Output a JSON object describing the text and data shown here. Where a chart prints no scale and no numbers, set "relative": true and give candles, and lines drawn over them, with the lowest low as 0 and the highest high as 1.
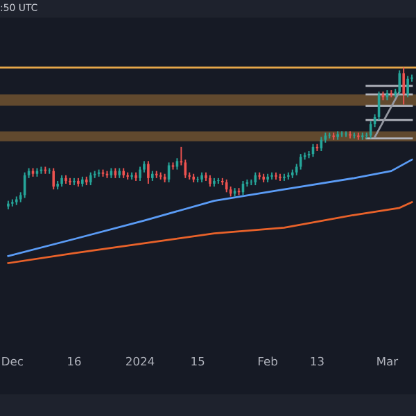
{
  "chart_data": {
    "type": "candlestick",
    "relative": true,
    "annotations": [
      ":50 UTC"
    ],
    "xlim": [
      "2023-11-28",
      "2024-03-08"
    ],
    "xticks": [
      {
        "value": "2023-12-01",
        "label": "Dec"
      },
      {
        "value": "2023-12-16",
        "label": "16"
      },
      {
        "value": "2024-01-01",
        "label": "2024"
      },
      {
        "value": "2024-01-15",
        "label": "15"
      },
      {
        "value": "2024-02-01",
        "label": "Feb"
      },
      {
        "value": "2024-02-13",
        "label": "13"
      },
      {
        "value": "2024-03-01",
        "label": "Mar"
      }
    ],
    "grid": false,
    "x": [
      "2023-11-30",
      "2023-12-01",
      "2023-12-02",
      "2023-12-03",
      "2023-12-04",
      "2023-12-05",
      "2023-12-06",
      "2023-12-07",
      "2023-12-08",
      "2023-12-09",
      "2023-12-10",
      "2023-12-11",
      "2023-12-12",
      "2023-12-13",
      "2023-12-14",
      "2023-12-15",
      "2023-12-16",
      "2023-12-17",
      "2023-12-18",
      "2023-12-19",
      "2023-12-20",
      "2023-12-21",
      "2023-12-22",
      "2023-12-23",
      "2023-12-24",
      "2023-12-25",
      "2023-12-26",
      "2023-12-27",
      "2023-12-28",
      "2023-12-29",
      "2023-12-30",
      "2023-12-31",
      "2024-01-01",
      "2024-01-02",
      "2024-01-03",
      "2024-01-04",
      "2024-01-05",
      "2024-01-06",
      "2024-01-07",
      "2024-01-08",
      "2024-01-09",
      "2024-01-10",
      "2024-01-11",
      "2024-01-12",
      "2024-01-13",
      "2024-01-14",
      "2024-01-15",
      "2024-01-16",
      "2024-01-17",
      "2024-01-18",
      "2024-01-19",
      "2024-01-20",
      "2024-01-21",
      "2024-01-22",
      "2024-01-23",
      "2024-01-24",
      "2024-01-25",
      "2024-01-26",
      "2024-01-27",
      "2024-01-28",
      "2024-01-29",
      "2024-01-30",
      "2024-01-31",
      "2024-02-01",
      "2024-02-02",
      "2024-02-03",
      "2024-02-04",
      "2024-02-05",
      "2024-02-06",
      "2024-02-07",
      "2024-02-08",
      "2024-02-09",
      "2024-02-10",
      "2024-02-11",
      "2024-02-12",
      "2024-02-13",
      "2024-02-14",
      "2024-02-15",
      "2024-02-16",
      "2024-02-17",
      "2024-02-18",
      "2024-02-19",
      "2024-02-20",
      "2024-02-21",
      "2024-02-22",
      "2024-02-23",
      "2024-02-24",
      "2024-02-25",
      "2024-02-26",
      "2024-02-27",
      "2024-02-28",
      "2024-02-29",
      "2024-03-01",
      "2024-03-02",
      "2024-03-03",
      "2024-03-04",
      "2024-03-05",
      "2024-03-06",
      "2024-03-07"
    ],
    "ohlc": [
      [
        0.02,
        0.06,
        0.0,
        0.04
      ],
      [
        0.04,
        0.07,
        0.02,
        0.05
      ],
      [
        0.05,
        0.09,
        0.03,
        0.07
      ],
      [
        0.07,
        0.12,
        0.05,
        0.1
      ],
      [
        0.1,
        0.26,
        0.08,
        0.24
      ],
      [
        0.24,
        0.29,
        0.22,
        0.27
      ],
      [
        0.27,
        0.29,
        0.23,
        0.25
      ],
      [
        0.25,
        0.29,
        0.23,
        0.27
      ],
      [
        0.27,
        0.3,
        0.25,
        0.28
      ],
      [
        0.28,
        0.3,
        0.25,
        0.27
      ],
      [
        0.27,
        0.29,
        0.25,
        0.27
      ],
      [
        0.27,
        0.29,
        0.14,
        0.16
      ],
      [
        0.16,
        0.2,
        0.14,
        0.18
      ],
      [
        0.18,
        0.24,
        0.16,
        0.22
      ],
      [
        0.22,
        0.24,
        0.18,
        0.2
      ],
      [
        0.2,
        0.22,
        0.17,
        0.19
      ],
      [
        0.19,
        0.22,
        0.17,
        0.2
      ],
      [
        0.2,
        0.22,
        0.16,
        0.18
      ],
      [
        0.18,
        0.23,
        0.16,
        0.21
      ],
      [
        0.21,
        0.23,
        0.17,
        0.19
      ],
      [
        0.19,
        0.26,
        0.17,
        0.24
      ],
      [
        0.24,
        0.27,
        0.22,
        0.25
      ],
      [
        0.25,
        0.28,
        0.23,
        0.26
      ],
      [
        0.26,
        0.28,
        0.23,
        0.25
      ],
      [
        0.25,
        0.27,
        0.22,
        0.24
      ],
      [
        0.24,
        0.29,
        0.22,
        0.27
      ],
      [
        0.27,
        0.29,
        0.22,
        0.24
      ],
      [
        0.24,
        0.29,
        0.22,
        0.27
      ],
      [
        0.27,
        0.29,
        0.22,
        0.24
      ],
      [
        0.24,
        0.26,
        0.21,
        0.23
      ],
      [
        0.23,
        0.26,
        0.21,
        0.24
      ],
      [
        0.24,
        0.26,
        0.2,
        0.22
      ],
      [
        0.22,
        0.3,
        0.2,
        0.28
      ],
      [
        0.28,
        0.34,
        0.26,
        0.32
      ],
      [
        0.32,
        0.34,
        0.18,
        0.22
      ],
      [
        0.22,
        0.27,
        0.2,
        0.25
      ],
      [
        0.25,
        0.27,
        0.22,
        0.24
      ],
      [
        0.24,
        0.26,
        0.21,
        0.23
      ],
      [
        0.23,
        0.25,
        0.19,
        0.21
      ],
      [
        0.21,
        0.33,
        0.19,
        0.31
      ],
      [
        0.31,
        0.33,
        0.28,
        0.3
      ],
      [
        0.3,
        0.36,
        0.28,
        0.34
      ],
      [
        0.34,
        0.44,
        0.31,
        0.33
      ],
      [
        0.33,
        0.35,
        0.22,
        0.24
      ],
      [
        0.24,
        0.26,
        0.21,
        0.23
      ],
      [
        0.23,
        0.25,
        0.19,
        0.21
      ],
      [
        0.21,
        0.23,
        0.19,
        0.21
      ],
      [
        0.21,
        0.26,
        0.19,
        0.24
      ],
      [
        0.24,
        0.26,
        0.2,
        0.22
      ],
      [
        0.22,
        0.24,
        0.16,
        0.18
      ],
      [
        0.18,
        0.22,
        0.16,
        0.2
      ],
      [
        0.2,
        0.22,
        0.18,
        0.2
      ],
      [
        0.2,
        0.22,
        0.17,
        0.19
      ],
      [
        0.19,
        0.21,
        0.12,
        0.14
      ],
      [
        0.14,
        0.16,
        0.09,
        0.11
      ],
      [
        0.11,
        0.15,
        0.09,
        0.13
      ],
      [
        0.13,
        0.15,
        0.1,
        0.12
      ],
      [
        0.12,
        0.2,
        0.1,
        0.18
      ],
      [
        0.18,
        0.21,
        0.16,
        0.19
      ],
      [
        0.19,
        0.21,
        0.17,
        0.19
      ],
      [
        0.19,
        0.26,
        0.17,
        0.24
      ],
      [
        0.24,
        0.26,
        0.21,
        0.23
      ],
      [
        0.23,
        0.25,
        0.19,
        0.21
      ],
      [
        0.21,
        0.25,
        0.19,
        0.23
      ],
      [
        0.23,
        0.26,
        0.21,
        0.24
      ],
      [
        0.24,
        0.26,
        0.21,
        0.23
      ],
      [
        0.23,
        0.25,
        0.2,
        0.22
      ],
      [
        0.22,
        0.25,
        0.2,
        0.23
      ],
      [
        0.23,
        0.26,
        0.21,
        0.24
      ],
      [
        0.24,
        0.28,
        0.22,
        0.26
      ],
      [
        0.26,
        0.32,
        0.24,
        0.3
      ],
      [
        0.3,
        0.39,
        0.28,
        0.37
      ],
      [
        0.37,
        0.4,
        0.35,
        0.38
      ],
      [
        0.38,
        0.41,
        0.36,
        0.39
      ],
      [
        0.39,
        0.46,
        0.37,
        0.44
      ],
      [
        0.44,
        0.46,
        0.41,
        0.43
      ],
      [
        0.43,
        0.51,
        0.41,
        0.49
      ],
      [
        0.49,
        0.54,
        0.47,
        0.52
      ],
      [
        0.52,
        0.54,
        0.5,
        0.52
      ],
      [
        0.52,
        0.54,
        0.49,
        0.51
      ],
      [
        0.51,
        0.55,
        0.49,
        0.53
      ],
      [
        0.53,
        0.55,
        0.51,
        0.53
      ],
      [
        0.53,
        0.55,
        0.51,
        0.53
      ],
      [
        0.53,
        0.55,
        0.5,
        0.52
      ],
      [
        0.52,
        0.54,
        0.5,
        0.52
      ],
      [
        0.52,
        0.54,
        0.49,
        0.51
      ],
      [
        0.51,
        0.54,
        0.49,
        0.52
      ],
      [
        0.52,
        0.54,
        0.5,
        0.52
      ],
      [
        0.52,
        0.62,
        0.5,
        0.6
      ],
      [
        0.6,
        0.67,
        0.58,
        0.65
      ],
      [
        0.65,
        0.83,
        0.63,
        0.81
      ],
      [
        0.81,
        0.83,
        0.77,
        0.79
      ],
      [
        0.79,
        0.84,
        0.77,
        0.82
      ],
      [
        0.82,
        0.84,
        0.79,
        0.81
      ],
      [
        0.81,
        0.85,
        0.79,
        0.83
      ],
      [
        0.83,
        0.98,
        0.81,
        0.96
      ],
      [
        0.96,
        1.0,
        0.74,
        0.81
      ],
      [
        0.81,
        0.94,
        0.79,
        0.92
      ],
      [
        0.92,
        0.95,
        0.9,
        0.93
      ]
    ],
    "series": [
      {
        "type": "line",
        "color": "#5b9cf6",
        "x": [
          "2023-11-30",
          "2023-12-16",
          "2024-01-02",
          "2024-01-19",
          "2024-02-05",
          "2024-02-22",
          "2024-03-02",
          "2024-03-07"
        ],
        "values": [
          -0.33,
          -0.21,
          -0.08,
          0.06,
          0.14,
          0.22,
          0.27,
          0.35
        ]
      },
      {
        "type": "line",
        "color": "#e9622a",
        "x": [
          "2023-11-30",
          "2023-12-16",
          "2024-01-02",
          "2024-01-19",
          "2024-02-05",
          "2024-02-22",
          "2024-03-04",
          "2024-03-07"
        ],
        "values": [
          -0.38,
          -0.31,
          -0.24,
          -0.17,
          -0.13,
          -0.04,
          0.01,
          0.05
        ]
      },
      {
        "type": "line",
        "color": "#b2b5be",
        "x": [
          "2024-02-25",
          "2024-03-07"
        ],
        "values": [
          0.87,
          0.87
        ]
      },
      {
        "type": "line",
        "color": "#b2b5be",
        "x": [
          "2024-02-25",
          "2024-03-07"
        ],
        "values": [
          0.81,
          0.81
        ]
      },
      {
        "type": "line",
        "color": "#b2b5be",
        "x": [
          "2024-02-25",
          "2024-03-07"
        ],
        "values": [
          0.73,
          0.73
        ]
      },
      {
        "type": "line",
        "color": "#b2b5be",
        "x": [
          "2024-02-25",
          "2024-03-07"
        ],
        "values": [
          0.63,
          0.63
        ]
      },
      {
        "type": "line",
        "color": "#b2b5be",
        "x": [
          "2024-02-25",
          "2024-03-07"
        ],
        "values": [
          0.5,
          0.5
        ]
      },
      {
        "type": "line",
        "color": "#9598a1",
        "x": [
          "2024-02-27",
          "2024-03-04"
        ],
        "values": [
          0.51,
          0.83
        ]
      }
    ],
    "bands": [
      {
        "axis": "y",
        "from": 0.73,
        "to": 0.81,
        "color": "#6e5230"
      },
      {
        "axis": "y",
        "from": 0.48,
        "to": 0.55,
        "color": "#6e5230"
      }
    ],
    "ref_lines": [
      {
        "axis": "y",
        "value": 1.0,
        "color": "#e8a84a"
      }
    ]
  }
}
